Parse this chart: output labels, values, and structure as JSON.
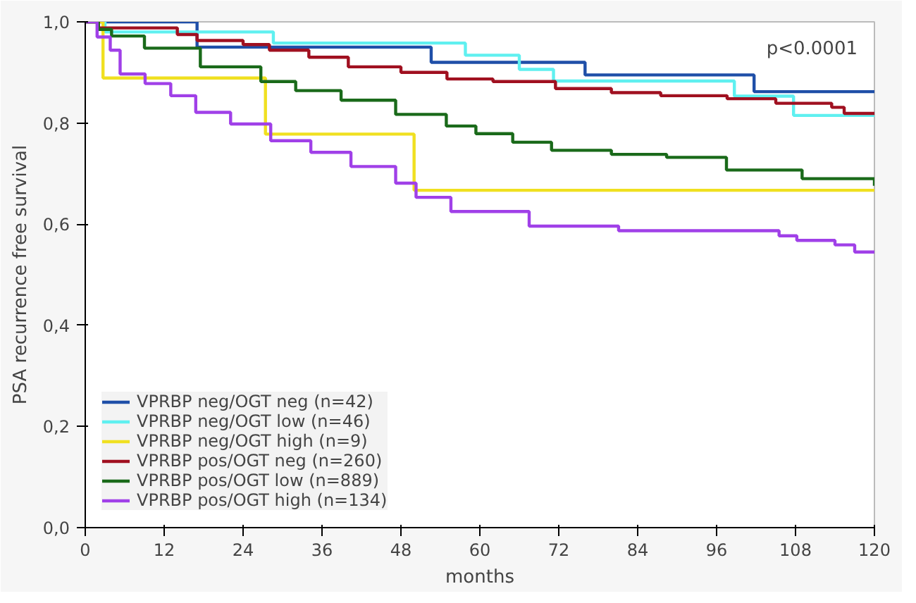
{
  "chart_data": {
    "type": "step",
    "xlabel": "months",
    "ylabel": "PSA recurrence free survival",
    "annotations": [
      "p<0.0001"
    ],
    "xlim": [
      0,
      120
    ],
    "xticks": [
      0,
      12,
      24,
      36,
      48,
      60,
      72,
      84,
      96,
      108,
      120
    ],
    "ylim": [
      0,
      1
    ],
    "yticks": [
      {
        "value": 0,
        "label": "0,0"
      },
      {
        "value": 0.2,
        "label": "0,2"
      },
      {
        "value": 0.4,
        "label": "0,4"
      },
      {
        "value": 0.6,
        "label": "0,6"
      },
      {
        "value": 0.8,
        "label": "0,8"
      },
      {
        "value": 1,
        "label": "1,0"
      }
    ],
    "grid": false,
    "legend": "bottom left",
    "series": [
      {
        "name": "VPRBP neg/OGT neg (n=42)",
        "color": "#1f4fa8",
        "x": [
          0,
          17,
          52.6,
          76,
          101.7,
          120
        ],
        "values": [
          1,
          0.95,
          0.92,
          0.895,
          0.862,
          0.862
        ]
      },
      {
        "name": "VPRBP neg/OGT low (n=46)",
        "color": "#5ff0f0",
        "x": [
          0,
          3,
          28.6,
          57.8,
          66,
          71.2,
          98.7,
          107.7,
          120
        ],
        "values": [
          1,
          0.98,
          0.958,
          0.934,
          0.906,
          0.883,
          0.853,
          0.815,
          0.815
        ]
      },
      {
        "name": "VPRBP neg/OGT high (n=9)",
        "color": "#f0e020",
        "x": [
          0,
          2.7,
          27.4,
          50,
          120
        ],
        "values": [
          1,
          0.889,
          0.778,
          0.667,
          0.667
        ]
      },
      {
        "name": "VPRBP pos/OGT neg (n=260)",
        "color": "#a01020",
        "x": [
          0,
          2,
          14,
          17,
          24,
          28,
          34,
          40,
          48,
          55,
          62,
          71.5,
          80,
          87.5,
          97.6,
          105,
          113.5,
          115.4,
          120
        ],
        "values": [
          1,
          0.988,
          0.975,
          0.963,
          0.955,
          0.944,
          0.93,
          0.911,
          0.9,
          0.887,
          0.882,
          0.868,
          0.86,
          0.854,
          0.848,
          0.839,
          0.831,
          0.819,
          0.819
        ]
      },
      {
        "name": "VPRBP pos/OGT low (n=889)",
        "color": "#1a6a1a",
        "x": [
          0,
          2,
          4,
          9,
          17.5,
          26.7,
          32,
          38.9,
          47.2,
          54.9,
          59.4,
          65,
          70.9,
          80,
          88.4,
          97.5,
          109,
          120
        ],
        "values": [
          1,
          0.985,
          0.972,
          0.948,
          0.911,
          0.882,
          0.864,
          0.845,
          0.817,
          0.794,
          0.779,
          0.762,
          0.746,
          0.738,
          0.732,
          0.707,
          0.69,
          0.676
        ]
      },
      {
        "name": "VPRBP pos/OGT high (n=134)",
        "color": "#a040e8",
        "x": [
          0,
          1.8,
          3.8,
          5.3,
          9.1,
          13,
          16.8,
          22.1,
          28.2,
          34.3,
          40.4,
          47.2,
          50.3,
          55.6,
          67.5,
          81.1,
          105.5,
          108.2,
          114,
          117,
          120
        ],
        "values": [
          1,
          0.97,
          0.944,
          0.897,
          0.878,
          0.854,
          0.821,
          0.798,
          0.765,
          0.742,
          0.714,
          0.681,
          0.653,
          0.625,
          0.596,
          0.587,
          0.577,
          0.568,
          0.559,
          0.545,
          0.545
        ]
      }
    ]
  }
}
